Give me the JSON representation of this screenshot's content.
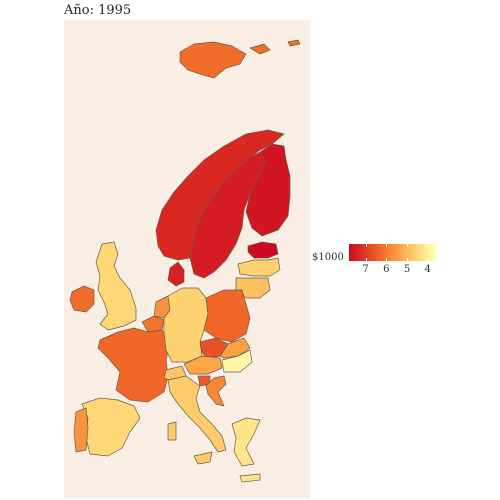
{
  "title": "Año: 1995",
  "legend": {
    "title": "$1000",
    "ticks": [
      {
        "value": 7,
        "label": "7"
      },
      {
        "value": 6,
        "label": "6"
      },
      {
        "value": 5,
        "label": "5"
      },
      {
        "value": 4,
        "label": "4"
      }
    ],
    "range": [
      7.8,
      3.6
    ],
    "colors": {
      "high": "#cc0b22",
      "low": "#ffffb6"
    }
  },
  "colors": {
    "background": "#ffffff",
    "panel": "#f8eee4",
    "border": "#6e5a4a"
  },
  "chart_data": {
    "type": "choropleth",
    "title": "Año: 1995",
    "legend_title": "$1000",
    "countries": [
      {
        "name": "Norway",
        "value": 7.3
      },
      {
        "name": "Sweden",
        "value": 7.5
      },
      {
        "name": "Finland",
        "value": 7.6
      },
      {
        "name": "Estonia",
        "value": 7.8
      },
      {
        "name": "Latvia",
        "value": 4.6
      },
      {
        "name": "Lithuania",
        "value": 4.9
      },
      {
        "name": "Denmark",
        "value": 7.4
      },
      {
        "name": "Ireland",
        "value": 6.2
      },
      {
        "name": "United Kingdom",
        "value": 4.5
      },
      {
        "name": "Netherlands",
        "value": 5.6
      },
      {
        "name": "Belgium",
        "value": 6.1
      },
      {
        "name": "France",
        "value": 6.3
      },
      {
        "name": "Germany",
        "value": 4.6
      },
      {
        "name": "Poland",
        "value": 6.3
      },
      {
        "name": "Czechia",
        "value": 6.6
      },
      {
        "name": "Slovakia",
        "value": 5.4
      },
      {
        "name": "Austria",
        "value": 5.3
      },
      {
        "name": "Hungary",
        "value": 3.8
      },
      {
        "name": "Switzerland",
        "value": 4.8
      },
      {
        "name": "Slovenia",
        "value": 6.5
      },
      {
        "name": "Croatia",
        "value": 5.8
      },
      {
        "name": "Italy",
        "value": 4.7
      },
      {
        "name": "Spain",
        "value": 4.5
      },
      {
        "name": "Portugal",
        "value": 5.6
      },
      {
        "name": "Greece",
        "value": 4.2
      },
      {
        "name": "Svalbard",
        "value": 6.2
      }
    ]
  }
}
